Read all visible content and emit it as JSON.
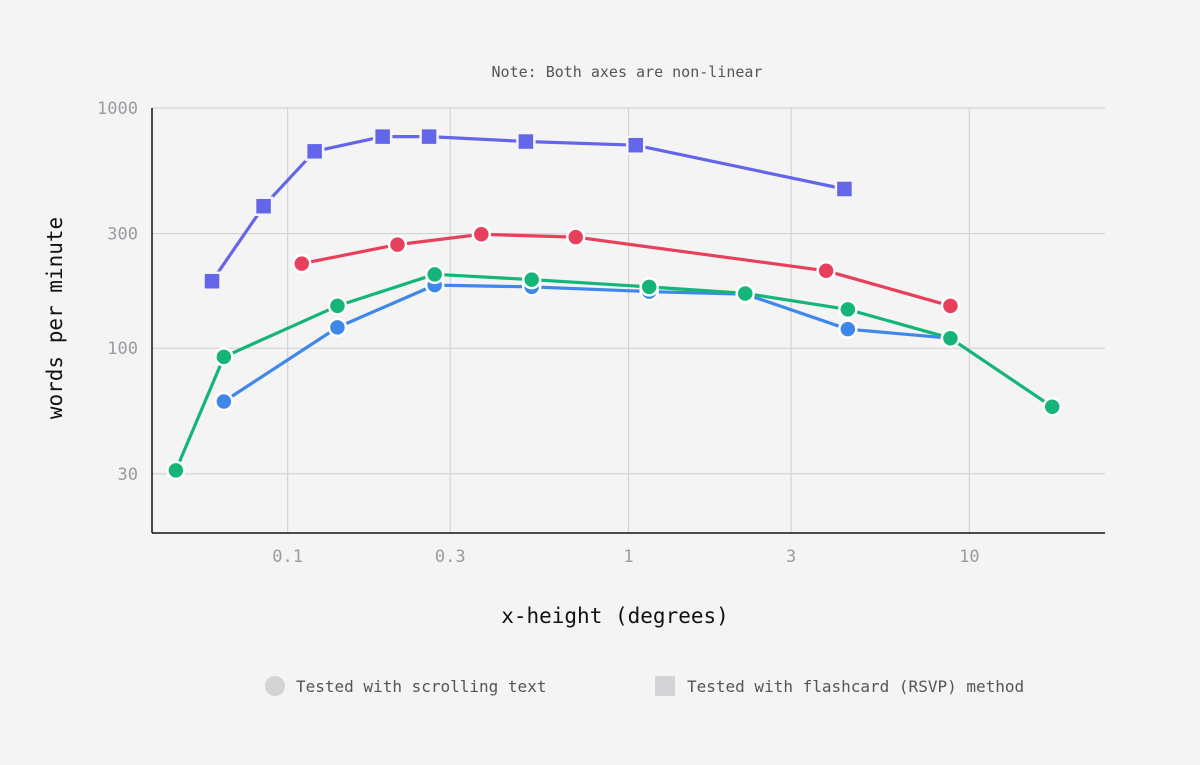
{
  "chart_data": {
    "type": "line",
    "note": "Note: Both axes are non-linear",
    "xlabel": "x-height (degrees)",
    "ylabel": "words per minute",
    "x_scale": "log",
    "y_scale": "log",
    "xlim": [
      0.04,
      25
    ],
    "ylim": [
      17,
      1000
    ],
    "grid": true,
    "x_ticks": [
      {
        "value": 0.1,
        "label": "0.1"
      },
      {
        "value": 0.3,
        "label": "0.3"
      },
      {
        "value": 1,
        "label": "1"
      },
      {
        "value": 3,
        "label": "3"
      },
      {
        "value": 10,
        "label": "10"
      }
    ],
    "y_ticks": [
      {
        "value": 30,
        "label": "30"
      },
      {
        "value": 100,
        "label": "100"
      },
      {
        "value": 300,
        "label": "300"
      },
      {
        "value": 1000,
        "label": "1000"
      }
    ],
    "legend_position": "bottom",
    "legend": [
      {
        "marker": "circle",
        "label": "Tested with scrolling text"
      },
      {
        "marker": "square",
        "label": "Tested with flashcard (RSVP) method"
      }
    ],
    "series": [
      {
        "color": "#6466e9",
        "marker": "square",
        "points": [
          {
            "x": 0.06,
            "y": 190
          },
          {
            "x": 0.085,
            "y": 390
          },
          {
            "x": 0.12,
            "y": 660
          },
          {
            "x": 0.19,
            "y": 760
          },
          {
            "x": 0.26,
            "y": 760
          },
          {
            "x": 0.5,
            "y": 725
          },
          {
            "x": 1.05,
            "y": 700
          },
          {
            "x": 4.3,
            "y": 460
          }
        ]
      },
      {
        "color": "#e8405c",
        "marker": "circle",
        "points": [
          {
            "x": 0.11,
            "y": 225
          },
          {
            "x": 0.21,
            "y": 270
          },
          {
            "x": 0.37,
            "y": 298
          },
          {
            "x": 0.7,
            "y": 290
          },
          {
            "x": 3.8,
            "y": 210
          },
          {
            "x": 8.8,
            "y": 150
          }
        ]
      },
      {
        "color": "#3f87ea",
        "marker": "circle",
        "points": [
          {
            "x": 0.065,
            "y": 60
          },
          {
            "x": 0.14,
            "y": 122
          },
          {
            "x": 0.27,
            "y": 183
          },
          {
            "x": 0.52,
            "y": 180
          },
          {
            "x": 1.15,
            "y": 172
          },
          {
            "x": 2.2,
            "y": 168
          },
          {
            "x": 4.4,
            "y": 120
          },
          {
            "x": 8.8,
            "y": 110
          }
        ]
      },
      {
        "color": "#15b579",
        "marker": "circle",
        "points": [
          {
            "x": 0.047,
            "y": 31
          },
          {
            "x": 0.065,
            "y": 92
          },
          {
            "x": 0.14,
            "y": 150
          },
          {
            "x": 0.27,
            "y": 203
          },
          {
            "x": 0.52,
            "y": 193
          },
          {
            "x": 1.15,
            "y": 180
          },
          {
            "x": 2.2,
            "y": 169
          },
          {
            "x": 4.4,
            "y": 145
          },
          {
            "x": 8.8,
            "y": 110
          },
          {
            "x": 17.5,
            "y": 57
          }
        ]
      }
    ]
  }
}
